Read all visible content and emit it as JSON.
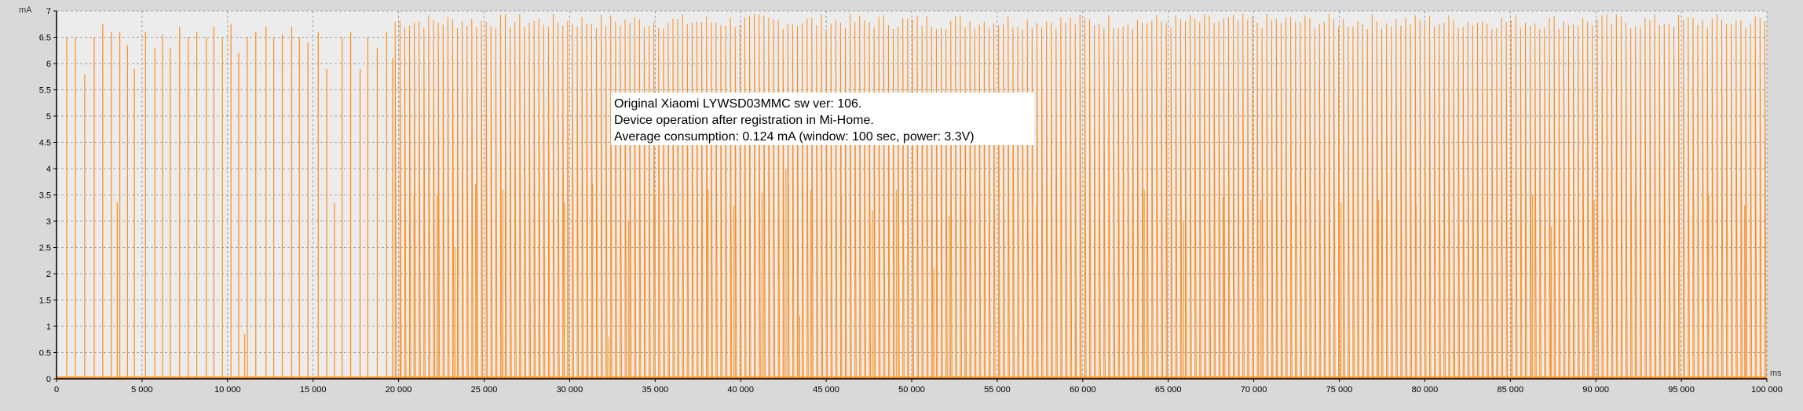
{
  "chart_data": {
    "type": "line",
    "title": "",
    "xlabel": "ms",
    "ylabel": "mA",
    "xlim": [
      0,
      100000
    ],
    "ylim": [
      0,
      7
    ],
    "grid": true,
    "legend": "none",
    "line_color": "#ff8c1a",
    "annotation": [
      "Original Xiaomi LYWSD03MMC sw ver: 106.",
      "Device operation after registration in Mi-Home.",
      "Average consumption: 0.124 mA (window: 100 sec, power: 3.3V)"
    ],
    "x_ticks": [
      {
        "value": 0,
        "label": "0"
      },
      {
        "value": 5000,
        "label": "5 000"
      },
      {
        "value": 10000,
        "label": "10 000"
      },
      {
        "value": 15000,
        "label": "15 000"
      },
      {
        "value": 20000,
        "label": "20 000"
      },
      {
        "value": 25000,
        "label": "25 000"
      },
      {
        "value": 30000,
        "label": "30 000"
      },
      {
        "value": 35000,
        "label": "35 000"
      },
      {
        "value": 40000,
        "label": "40 000"
      },
      {
        "value": 45000,
        "label": "45 000"
      },
      {
        "value": 50000,
        "label": "50 000"
      },
      {
        "value": 55000,
        "label": "55 000"
      },
      {
        "value": 60000,
        "label": "60 000"
      },
      {
        "value": 65000,
        "label": "65 000"
      },
      {
        "value": 70000,
        "label": "70 000"
      },
      {
        "value": 75000,
        "label": "75 000"
      },
      {
        "value": 80000,
        "label": "80 000"
      },
      {
        "value": 85000,
        "label": "85 000"
      },
      {
        "value": 90000,
        "label": "90 000"
      },
      {
        "value": 95000,
        "label": "95 000"
      },
      {
        "value": 100000,
        "label": "100 000"
      }
    ],
    "y_ticks": [
      {
        "value": 0,
        "label": "0"
      },
      {
        "value": 0.5,
        "label": "0.5"
      },
      {
        "value": 1,
        "label": "1"
      },
      {
        "value": 1.5,
        "label": "1.5"
      },
      {
        "value": 2,
        "label": "2"
      },
      {
        "value": 2.5,
        "label": "2.5"
      },
      {
        "value": 3,
        "label": "3"
      },
      {
        "value": 3.5,
        "label": "3.5"
      },
      {
        "value": 4,
        "label": "4"
      },
      {
        "value": 4.5,
        "label": "4.5"
      },
      {
        "value": 5,
        "label": "5"
      },
      {
        "value": 5.5,
        "label": "5.5"
      },
      {
        "value": 6,
        "label": "6"
      },
      {
        "value": 6.5,
        "label": "6.5"
      },
      {
        "value": 7,
        "label": "7"
      }
    ],
    "baseline_level": 0.02,
    "sparse_spikes": [
      {
        "x": 600,
        "y": 6.5
      },
      {
        "x": 1100,
        "y": 6.5
      },
      {
        "x": 1650,
        "y": 5.8
      },
      {
        "x": 2200,
        "y": 6.5
      },
      {
        "x": 2700,
        "y": 6.75
      },
      {
        "x": 3200,
        "y": 6.6
      },
      {
        "x": 3550,
        "y": 3.35
      },
      {
        "x": 3700,
        "y": 6.6
      },
      {
        "x": 4150,
        "y": 6.35
      },
      {
        "x": 4550,
        "y": 5.9
      },
      {
        "x": 5200,
        "y": 6.6
      },
      {
        "x": 5750,
        "y": 6.3
      },
      {
        "x": 6200,
        "y": 6.55
      },
      {
        "x": 6650,
        "y": 6.3
      },
      {
        "x": 7200,
        "y": 6.7
      },
      {
        "x": 7700,
        "y": 6.5
      },
      {
        "x": 8200,
        "y": 6.6
      },
      {
        "x": 8750,
        "y": 6.5
      },
      {
        "x": 9200,
        "y": 6.7
      },
      {
        "x": 9700,
        "y": 6.5
      },
      {
        "x": 10200,
        "y": 6.75
      },
      {
        "x": 10650,
        "y": 6.2
      },
      {
        "x": 11000,
        "y": 0.85
      },
      {
        "x": 11150,
        "y": 6.5
      },
      {
        "x": 11650,
        "y": 6.6
      },
      {
        "x": 12250,
        "y": 6.7
      },
      {
        "x": 12700,
        "y": 6.5
      },
      {
        "x": 13200,
        "y": 6.55
      },
      {
        "x": 13750,
        "y": 6.7
      },
      {
        "x": 14200,
        "y": 6.5
      },
      {
        "x": 14700,
        "y": 6.4
      },
      {
        "x": 15300,
        "y": 6.6
      },
      {
        "x": 15800,
        "y": 5.9
      },
      {
        "x": 16250,
        "y": 3.35
      },
      {
        "x": 16700,
        "y": 6.5
      },
      {
        "x": 17200,
        "y": 6.6
      },
      {
        "x": 17750,
        "y": 5.9
      },
      {
        "x": 18200,
        "y": 6.5
      },
      {
        "x": 18750,
        "y": 6.3
      },
      {
        "x": 19300,
        "y": 6.6
      },
      {
        "x": 19650,
        "y": 6.1
      }
    ],
    "dense_region": {
      "x_start": 19800,
      "x_end": 100000,
      "step_ms": 280,
      "peak_range": [
        6.65,
        6.95
      ],
      "occasional_low_peaks": [
        {
          "x": 20100,
          "y": 2.9
        },
        {
          "x": 20900,
          "y": 3.5
        },
        {
          "x": 22250,
          "y": 3.5
        },
        {
          "x": 23300,
          "y": 2.5
        },
        {
          "x": 24500,
          "y": 3.7
        },
        {
          "x": 26100,
          "y": 3.6
        },
        {
          "x": 28250,
          "y": 3.2
        },
        {
          "x": 29700,
          "y": 3.35
        },
        {
          "x": 31350,
          "y": 3.7
        },
        {
          "x": 32300,
          "y": 0.8
        },
        {
          "x": 33450,
          "y": 3.0
        },
        {
          "x": 35000,
          "y": 3.5
        },
        {
          "x": 36600,
          "y": 3.2
        },
        {
          "x": 38100,
          "y": 3.6
        },
        {
          "x": 39600,
          "y": 3.3
        },
        {
          "x": 41250,
          "y": 3.55
        },
        {
          "x": 42650,
          "y": 4.0
        },
        {
          "x": 43450,
          "y": 1.2
        },
        {
          "x": 44100,
          "y": 3.6
        },
        {
          "x": 45900,
          "y": 3.5
        },
        {
          "x": 47700,
          "y": 3.2
        },
        {
          "x": 49100,
          "y": 3.6
        },
        {
          "x": 51300,
          "y": 2.1
        },
        {
          "x": 52200,
          "y": 3.1
        },
        {
          "x": 53100,
          "y": 3.5
        },
        {
          "x": 55100,
          "y": 3.4
        },
        {
          "x": 57300,
          "y": 3.3
        },
        {
          "x": 59600,
          "y": 3.6
        },
        {
          "x": 61800,
          "y": 3.1
        },
        {
          "x": 63600,
          "y": 3.6
        },
        {
          "x": 65900,
          "y": 3.0
        },
        {
          "x": 68200,
          "y": 3.45
        },
        {
          "x": 70400,
          "y": 3.4
        },
        {
          "x": 72500,
          "y": 3.3
        },
        {
          "x": 75100,
          "y": 3.35
        },
        {
          "x": 77300,
          "y": 3.4
        },
        {
          "x": 79500,
          "y": 3.3
        },
        {
          "x": 81700,
          "y": 3.3
        },
        {
          "x": 83950,
          "y": 3.2
        },
        {
          "x": 86300,
          "y": 3.5
        },
        {
          "x": 87400,
          "y": 2.9
        },
        {
          "x": 89900,
          "y": 3.4
        },
        {
          "x": 92300,
          "y": 3.5
        },
        {
          "x": 94600,
          "y": 3.4
        },
        {
          "x": 96600,
          "y": 3.5
        },
        {
          "x": 98700,
          "y": 3.3
        }
      ]
    }
  }
}
